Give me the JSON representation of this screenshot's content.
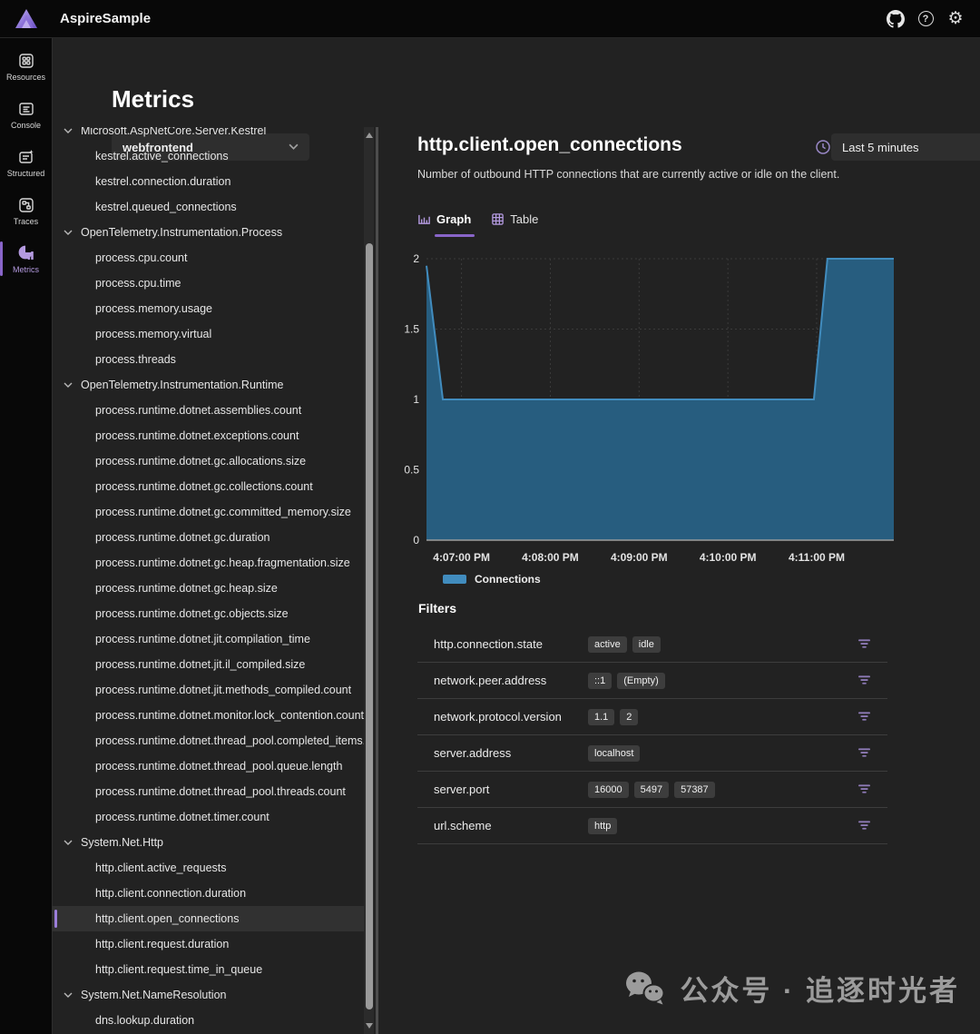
{
  "topbar": {
    "app_name": "AspireSample"
  },
  "nav": {
    "items": [
      {
        "id": "resources",
        "label": "Resources",
        "active": false
      },
      {
        "id": "console",
        "label": "Console",
        "active": false
      },
      {
        "id": "structured",
        "label": "Structured",
        "active": false
      },
      {
        "id": "traces",
        "label": "Traces",
        "active": false
      },
      {
        "id": "metrics",
        "label": "Metrics",
        "active": true
      }
    ]
  },
  "page": {
    "title": "Metrics"
  },
  "toolbar": {
    "resource_selector_value": "webfrontend",
    "time_range_value": "Last 5 minutes"
  },
  "metrics_tree": {
    "groups": [
      {
        "label": "Microsoft.AspNetCore.Server.Kestrel",
        "items": [
          {
            "label": "kestrel.active_connections"
          },
          {
            "label": "kestrel.connection.duration"
          },
          {
            "label": "kestrel.queued_connections"
          }
        ]
      },
      {
        "label": "OpenTelemetry.Instrumentation.Process",
        "items": [
          {
            "label": "process.cpu.count"
          },
          {
            "label": "process.cpu.time"
          },
          {
            "label": "process.memory.usage"
          },
          {
            "label": "process.memory.virtual"
          },
          {
            "label": "process.threads"
          }
        ]
      },
      {
        "label": "OpenTelemetry.Instrumentation.Runtime",
        "items": [
          {
            "label": "process.runtime.dotnet.assemblies.count"
          },
          {
            "label": "process.runtime.dotnet.exceptions.count"
          },
          {
            "label": "process.runtime.dotnet.gc.allocations.size"
          },
          {
            "label": "process.runtime.dotnet.gc.collections.count"
          },
          {
            "label": "process.runtime.dotnet.gc.committed_memory.size"
          },
          {
            "label": "process.runtime.dotnet.gc.duration"
          },
          {
            "label": "process.runtime.dotnet.gc.heap.fragmentation.size"
          },
          {
            "label": "process.runtime.dotnet.gc.heap.size"
          },
          {
            "label": "process.runtime.dotnet.gc.objects.size"
          },
          {
            "label": "process.runtime.dotnet.jit.compilation_time"
          },
          {
            "label": "process.runtime.dotnet.jit.il_compiled.size"
          },
          {
            "label": "process.runtime.dotnet.jit.methods_compiled.count"
          },
          {
            "label": "process.runtime.dotnet.monitor.lock_contention.count"
          },
          {
            "label": "process.runtime.dotnet.thread_pool.completed_items.count"
          },
          {
            "label": "process.runtime.dotnet.thread_pool.queue.length"
          },
          {
            "label": "process.runtime.dotnet.thread_pool.threads.count"
          },
          {
            "label": "process.runtime.dotnet.timer.count"
          }
        ]
      },
      {
        "label": "System.Net.Http",
        "items": [
          {
            "label": "http.client.active_requests"
          },
          {
            "label": "http.client.connection.duration"
          },
          {
            "label": "http.client.open_connections",
            "selected": true
          },
          {
            "label": "http.client.request.duration"
          },
          {
            "label": "http.client.request.time_in_queue"
          }
        ]
      },
      {
        "label": "System.Net.NameResolution",
        "items": [
          {
            "label": "dns.lookup.duration"
          }
        ]
      }
    ]
  },
  "detail": {
    "title": "http.client.open_connections",
    "description": "Number of outbound HTTP connections that are currently active or idle on the client.",
    "tabs": [
      {
        "label": "Graph",
        "active": true
      },
      {
        "label": "Table",
        "active": false
      }
    ]
  },
  "chart_data": {
    "type": "area",
    "title": "http.client.open_connections",
    "ylabel": "Connections",
    "ylim": [
      0,
      2
    ],
    "y_ticks": [
      0,
      0.5,
      1,
      1.5,
      2
    ],
    "x_ticks": [
      {
        "label": "4:07:00 PM",
        "f": 0.075
      },
      {
        "label": "4:08:00 PM",
        "f": 0.265
      },
      {
        "label": "4:09:00 PM",
        "f": 0.455
      },
      {
        "label": "4:10:00 PM",
        "f": 0.645
      },
      {
        "label": "4:11:00 PM",
        "f": 0.835
      }
    ],
    "series": [
      {
        "name": "Connections",
        "points": [
          {
            "t": "~4:06:40 PM",
            "f": 0.0,
            "y": 1.95
          },
          {
            "t": "~4:06:50 PM",
            "f": 0.035,
            "y": 1
          },
          {
            "t": "~4:10:57 PM",
            "f": 0.829,
            "y": 1
          },
          {
            "t": "~4:11:06 PM",
            "f": 0.858,
            "y": 2
          },
          {
            "t": "~4:11:50 PM",
            "f": 1.0,
            "y": 2
          }
        ]
      }
    ],
    "legend": {
      "position": "bottom-left",
      "entries": [
        "Connections"
      ]
    },
    "grid": "dotted",
    "colors": {
      "fill": "#275d7f",
      "line": "#418cbe",
      "axis": "#9c9c9c",
      "grid": "#3b3b3b"
    }
  },
  "filters": {
    "title": "Filters",
    "rows": [
      {
        "name": "http.connection.state",
        "tags": [
          "active",
          "idle"
        ]
      },
      {
        "name": "network.peer.address",
        "tags": [
          "::1",
          "(Empty)"
        ]
      },
      {
        "name": "network.protocol.version",
        "tags": [
          "1.1",
          "2"
        ]
      },
      {
        "name": "server.address",
        "tags": [
          "localhost"
        ]
      },
      {
        "name": "server.port",
        "tags": [
          "16000",
          "5497",
          "57387"
        ]
      },
      {
        "name": "url.scheme",
        "tags": [
          "http"
        ]
      }
    ]
  },
  "watermark": {
    "text": "公众号 · 追逐时光者"
  },
  "icons": {
    "aspire-logo": "purple triangle",
    "github-icon": "github mark",
    "help-icon": "? in circle",
    "settings-icon": "gear",
    "clock-icon": "clock outline",
    "chevron-down-icon": "v chevron",
    "graph-chart-icon": "histogram outline",
    "table-grid-icon": "3x3 grid",
    "filter-funnel-icon": "funnel bars",
    "wechat-icon": "two chat bubbles"
  },
  "theme": {
    "accent_purple": "#8965c9",
    "chart_fill": "#275d7f",
    "chart_line": "#418cbe",
    "selection_bg": "#313131"
  }
}
